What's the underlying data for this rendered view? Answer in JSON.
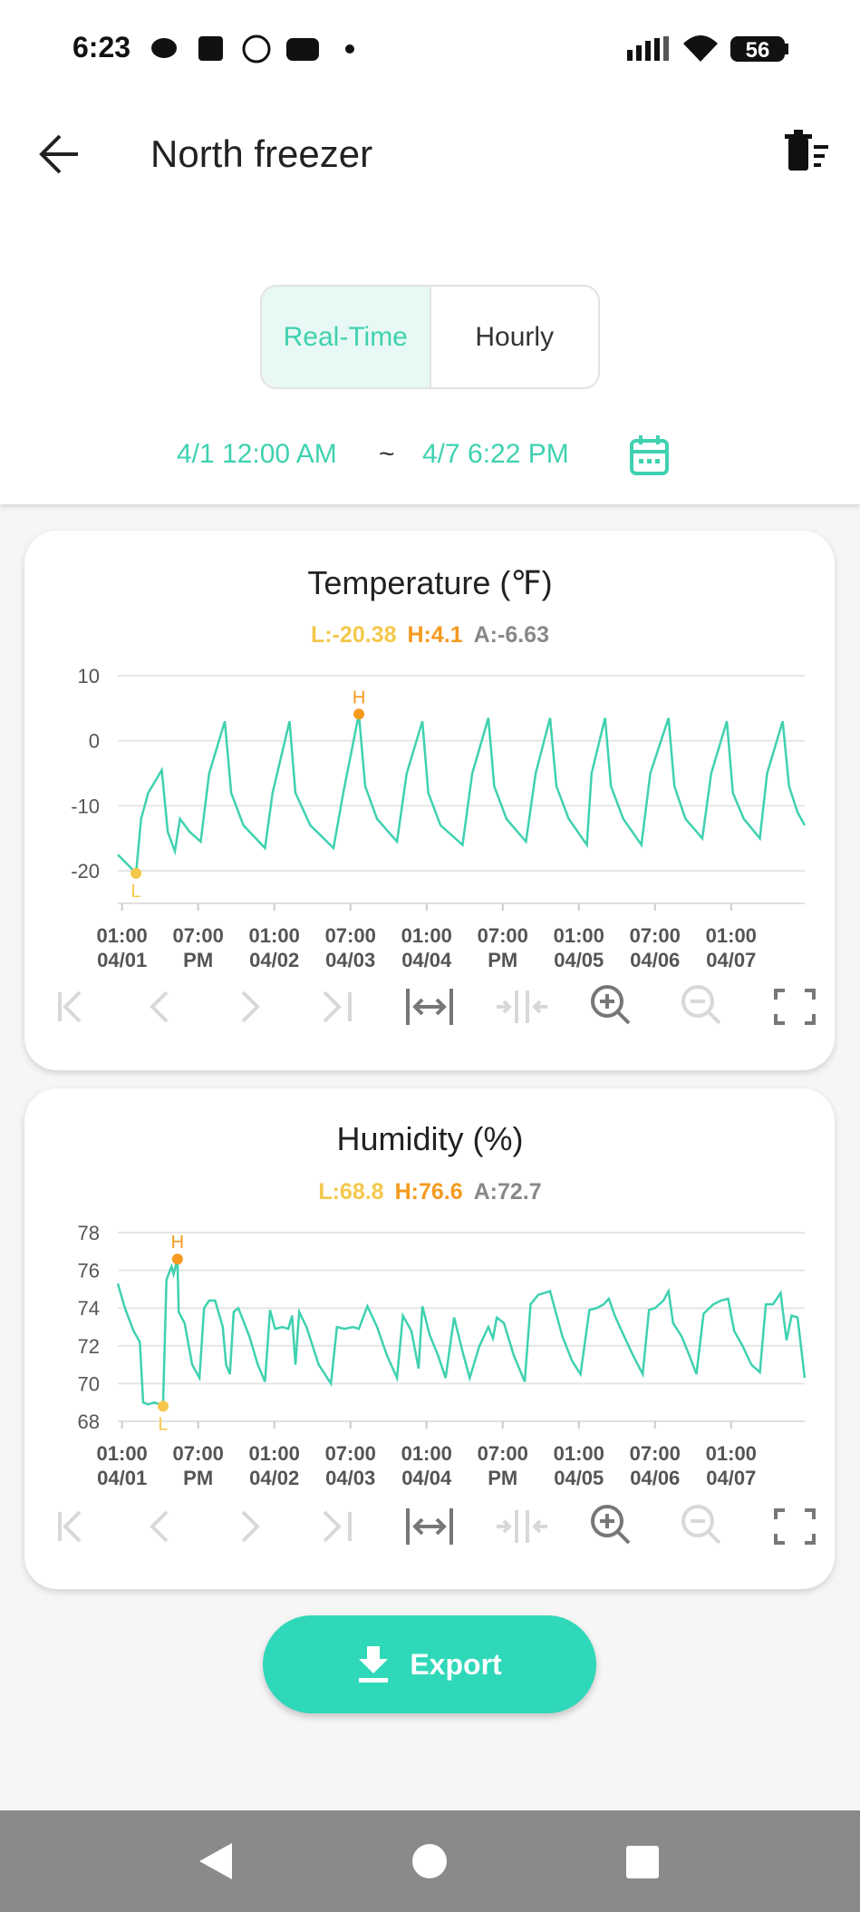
{
  "status": {
    "time": "6:23",
    "battery": "56"
  },
  "header": {
    "title": "North freezer"
  },
  "tabs": [
    "Real-Time",
    "Hourly"
  ],
  "date_range": {
    "start": "4/1 12:00 AM",
    "separator": "~",
    "end": "4/7 6:22 PM"
  },
  "export_button": "Export",
  "chart_data": [
    {
      "type": "line",
      "title": "Temperature (℉)",
      "color": "#3fd1b0",
      "summary": [
        {
          "text": "L:-20.38",
          "color": "#f5c84c"
        },
        {
          "text": "H:4.1",
          "color": "#f59a1f"
        },
        {
          "text": "A:-6.63",
          "color": "#888888"
        }
      ],
      "xlim": [
        0,
        162.4
      ],
      "ylim": [
        -25,
        10
      ],
      "yticks": [
        -20,
        -10,
        0,
        10
      ],
      "grid": true,
      "xticks": [
        {
          "value": 1,
          "label": "01:00\n04/01"
        },
        {
          "value": 19,
          "label": "07:00\nPM"
        },
        {
          "value": 37,
          "label": "01:00\n04/02"
        },
        {
          "value": 55,
          "label": "07:00\n04/03"
        },
        {
          "value": 73,
          "label": "01:00\n04/04"
        },
        {
          "value": 91,
          "label": "07:00\nPM"
        },
        {
          "value": 109,
          "label": "01:00\n04/05"
        },
        {
          "value": 127,
          "label": "07:00\n04/06"
        },
        {
          "value": 145,
          "label": "01:00\n04/07"
        }
      ],
      "x": [
        0,
        2.3,
        4.3,
        5.5,
        7.2,
        10.4,
        11.8,
        13.5,
        14.7,
        17.0,
        19.6,
        21.6,
        25.3,
        26.8,
        29.7,
        34.8,
        36.6,
        40.6,
        42.0,
        45.5,
        51.0,
        53.3,
        57.0,
        58.5,
        61.3,
        66.0,
        68.3,
        72.0,
        73.4,
        76.3,
        81.5,
        83.8,
        87.6,
        89.0,
        91.9,
        96.5,
        98.8,
        102.2,
        103.7,
        106.6,
        110.9,
        112.0,
        115.2,
        116.6,
        119.5,
        123.8,
        125.9,
        130.2,
        131.6,
        134.2,
        138.2,
        140.3,
        144.0,
        145.4,
        148.0,
        151.8,
        153.5,
        157.2,
        158.7,
        160.7,
        162.4
      ],
      "values": [
        -17.5,
        -19,
        -20.38,
        -12,
        -8,
        -4.5,
        -14,
        -17,
        -12,
        -14,
        -15.5,
        -5,
        3,
        -8,
        -13,
        -16.5,
        -8,
        3,
        -8,
        -13,
        -16.5,
        -8,
        4.1,
        -7,
        -12,
        -15.5,
        -5,
        3,
        -8,
        -13,
        -16,
        -5,
        3.5,
        -7,
        -12,
        -15.5,
        -5,
        3.5,
        -7,
        -12,
        -16,
        -5,
        3.5,
        -7,
        -12,
        -16,
        -5,
        3.5,
        -7,
        -12,
        -15,
        -5,
        3,
        -8,
        -12,
        -15,
        -5,
        3,
        -7,
        -11,
        -13
      ],
      "annotations": [
        {
          "text": "L",
          "x": 4.3,
          "y": -20.38,
          "color": "#f5c84c"
        },
        {
          "text": "H",
          "x": 57.0,
          "y": 4.1,
          "color": "#f59a1f"
        }
      ]
    },
    {
      "type": "line",
      "title": "Humidity (%)",
      "color": "#3fd1b0",
      "summary": [
        {
          "text": "L:68.8",
          "color": "#f5c84c"
        },
        {
          "text": "H:76.6",
          "color": "#f59a1f"
        },
        {
          "text": "A:72.7",
          "color": "#888888"
        }
      ],
      "xlim": [
        0,
        162.4
      ],
      "ylim": [
        68,
        78
      ],
      "yticks": [
        68,
        70,
        72,
        74,
        76,
        78
      ],
      "grid": true,
      "xticks": [
        {
          "value": 1,
          "label": "01:00\n04/01"
        },
        {
          "value": 19,
          "label": "07:00\nPM"
        },
        {
          "value": 37,
          "label": "01:00\n04/02"
        },
        {
          "value": 55,
          "label": "07:00\n04/03"
        },
        {
          "value": 73,
          "label": "01:00\n04/04"
        },
        {
          "value": 91,
          "label": "07:00\nPM"
        },
        {
          "value": 109,
          "label": "01:00\n04/05"
        },
        {
          "value": 127,
          "label": "07:00\n04/06"
        },
        {
          "value": 145,
          "label": "01:00\n04/07"
        }
      ],
      "x": [
        0,
        1.7,
        3.7,
        5.2,
        6.0,
        7.2,
        8.6,
        9.8,
        10.7,
        11.5,
        12.7,
        13.2,
        14.1,
        14.4,
        15.8,
        17.6,
        19.3,
        20.4,
        21.6,
        23.0,
        24.8,
        25.6,
        26.5,
        27.4,
        28.5,
        31.1,
        33.1,
        34.8,
        36.0,
        37.2,
        38.9,
        40.3,
        41.2,
        42.0,
        42.9,
        44.6,
        47.5,
        50.4,
        51.8,
        53.6,
        55.6,
        57.0,
        59.0,
        61.3,
        63.6,
        66.0,
        67.4,
        69.4,
        71.1,
        72.0,
        73.7,
        75.7,
        77.5,
        79.5,
        81.5,
        83.2,
        85.5,
        87.6,
        88.7,
        89.6,
        91.3,
        93.6,
        96.2,
        97.6,
        99.4,
        100.8,
        102.2,
        103.4,
        105.1,
        107.4,
        109.4,
        111.5,
        113.2,
        114.9,
        116.1,
        117.5,
        119.5,
        121.8,
        124.1,
        125.6,
        127.0,
        129.0,
        130.2,
        131.3,
        133.3,
        135.1,
        136.8,
        138.5,
        140.8,
        142.6,
        144.3,
        145.7,
        147.7,
        149.8,
        151.8,
        153.2,
        154.9,
        156.7,
        158.1,
        159.3,
        160.7,
        162.4
      ],
      "values": [
        75.3,
        74,
        72.8,
        72.2,
        69,
        68.9,
        69,
        68.9,
        68.8,
        75.5,
        76.2,
        75.8,
        76.6,
        73.8,
        73.2,
        71,
        70.3,
        74,
        74.4,
        74.4,
        73,
        71,
        70.5,
        73.8,
        74,
        72.5,
        71,
        70.1,
        73.9,
        72.9,
        73,
        72.9,
        73.6,
        71,
        73.8,
        73,
        71,
        70,
        73,
        72.9,
        73,
        72.9,
        74.1,
        73,
        71.5,
        70.3,
        73.6,
        72.8,
        70.8,
        74.1,
        72.6,
        71.5,
        70.3,
        73.5,
        71.7,
        70.3,
        72,
        73,
        72.4,
        73.5,
        73.2,
        71.5,
        70.1,
        74.2,
        74.7,
        74.8,
        74.9,
        73.9,
        72.5,
        71.2,
        70.5,
        73.9,
        74,
        74.2,
        74.5,
        73.6,
        72.6,
        71.5,
        70.5,
        73.9,
        74,
        74.4,
        74.9,
        73.2,
        72.5,
        71.5,
        70.5,
        73.7,
        74.2,
        74.4,
        74.5,
        72.8,
        72,
        71,
        70.6,
        74.2,
        74.2,
        74.8,
        72.3,
        73.6,
        73.5,
        70.3
      ],
      "annotations": [
        {
          "text": "L",
          "x": 10.7,
          "y": 68.8,
          "color": "#f5c84c"
        },
        {
          "text": "H",
          "x": 14.1,
          "y": 76.6,
          "color": "#f59a1f"
        }
      ]
    }
  ]
}
